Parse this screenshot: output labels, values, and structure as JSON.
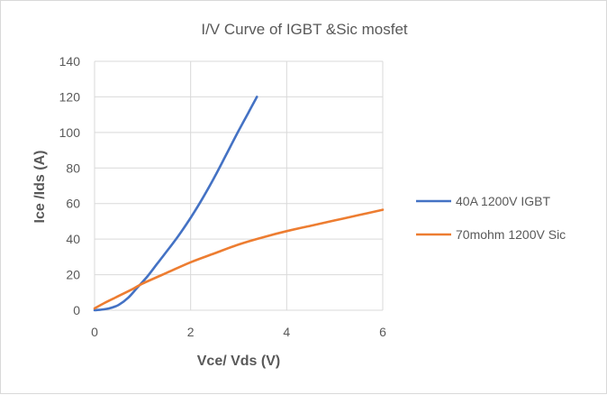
{
  "chart_data": {
    "type": "line",
    "title": "I/V Curve of IGBT &Sic mosfet",
    "xlabel": "Vce/ Vds (V)",
    "ylabel": "Ice /Ids (A)",
    "xlim": [
      0,
      6
    ],
    "ylim": [
      0,
      140
    ],
    "xticks": [
      0,
      2,
      4,
      6
    ],
    "yticks": [
      0,
      20,
      40,
      60,
      80,
      100,
      120,
      140
    ],
    "grid": true,
    "legend_position": "right",
    "series": [
      {
        "name": "40A 1200V IGBT",
        "color": "#4472c4",
        "x": [
          0.0,
          0.1,
          0.3,
          0.5,
          0.7,
          0.9,
          1.1,
          1.3,
          1.5,
          1.75,
          2.0,
          2.25,
          2.5,
          2.75,
          3.0,
          3.2,
          3.38
        ],
        "y": [
          0,
          0.2,
          1,
          3,
          7,
          13,
          19,
          26,
          33,
          42,
          52,
          63,
          75,
          88,
          101,
          111,
          120
        ]
      },
      {
        "name": "70mohm 1200V Sic",
        "color": "#ed7d31",
        "x": [
          0.0,
          0.2,
          0.5,
          0.8,
          1.0,
          1.5,
          2.0,
          2.5,
          3.0,
          3.5,
          4.0,
          4.5,
          5.0,
          5.5,
          6.0
        ],
        "y": [
          1,
          4,
          8,
          12,
          15,
          21,
          27,
          32,
          37,
          41,
          44.5,
          47.5,
          50.5,
          53.5,
          56.5
        ]
      }
    ]
  }
}
